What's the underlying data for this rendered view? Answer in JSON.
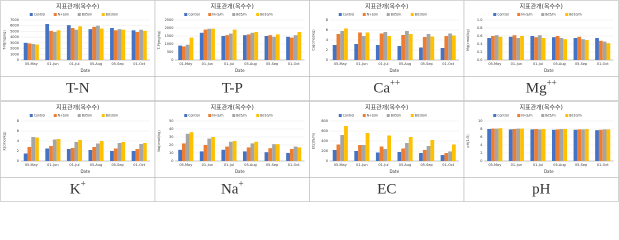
{
  "chart_data": [
    {
      "type": "bar",
      "title": "지표관개(옥수수)",
      "xlabel": "Date",
      "ylabel": "T-N(mg/kg)",
      "legend": "top",
      "categories": [
        "05-May",
        "01-Jun",
        "01-Jul",
        "05-Aug",
        "05-Sep",
        "01-Oct"
      ],
      "series": [
        {
          "name": "Control",
          "color": "#4472c4",
          "values": [
            3000,
            6300,
            6100,
            5400,
            5600,
            5200
          ]
        },
        {
          "name": "N+S/m",
          "color": "#ed7d31",
          "values": [
            2900,
            5100,
            5600,
            5800,
            5200,
            4900
          ]
        },
        {
          "name": "Bd5/m",
          "color": "#a5a5a5",
          "values": [
            2800,
            4900,
            5300,
            6000,
            5400,
            5300
          ]
        },
        {
          "name": "Bd10/m",
          "color": "#ffc000",
          "values": [
            2700,
            5200,
            5900,
            5500,
            5300,
            5100
          ]
        }
      ],
      "ylim": [
        0,
        7000
      ],
      "yticks": [
        0,
        1000,
        2000,
        3000,
        4000,
        5000,
        6000,
        7000
      ]
    },
    {
      "type": "bar",
      "title": "지표관개(옥수수)",
      "xlabel": "Date",
      "ylabel": "T-P(mg/kg)",
      "legend": "top",
      "categories": [
        "01-May",
        "01-Jun",
        "01-Jul",
        "05-Aug",
        "05-Sep",
        "01-Oct"
      ],
      "series": [
        {
          "name": "Control",
          "color": "#4472c4",
          "values": [
            900,
            1700,
            1500,
            1550,
            1500,
            1450
          ]
        },
        {
          "name": "N+S/m",
          "color": "#ed7d31",
          "values": [
            850,
            1900,
            1550,
            1600,
            1550,
            1400
          ]
        },
        {
          "name": "Bd5/m",
          "color": "#a5a5a5",
          "values": [
            950,
            1950,
            1650,
            1700,
            1450,
            1550
          ]
        },
        {
          "name": "Bd10/m",
          "color": "#ffc000",
          "values": [
            1400,
            1950,
            1900,
            1750,
            1600,
            1750
          ]
        }
      ],
      "ylim": [
        0,
        2500
      ],
      "yticks": [
        0,
        500,
        1000,
        1500,
        2000,
        2500
      ]
    },
    {
      "type": "bar",
      "title": "지표관개(옥수수)",
      "xlabel": "Date",
      "ylabel": "Ca(cmol/kg)",
      "legend": "top",
      "categories": [
        "05-May",
        "01-Jun",
        "01-Jul",
        "05-Aug",
        "05-Sep",
        "01-Oct"
      ],
      "series": [
        {
          "name": "Control",
          "color": "#4472c4",
          "values": [
            3.0,
            3.2,
            3.0,
            2.8,
            2.5,
            2.4
          ]
        },
        {
          "name": "N+S/m",
          "color": "#ed7d31",
          "values": [
            5.2,
            5.5,
            5.3,
            5.0,
            4.6,
            4.8
          ]
        },
        {
          "name": "Bd5/m",
          "color": "#a5a5a5",
          "values": [
            5.8,
            4.8,
            5.6,
            5.8,
            5.2,
            5.3
          ]
        },
        {
          "name": "Bd10/m",
          "color": "#ffc000",
          "values": [
            6.3,
            5.5,
            4.8,
            5.2,
            4.7,
            4.9
          ]
        }
      ],
      "ylim": [
        0,
        8
      ],
      "yticks": [
        0,
        2,
        4,
        6,
        8
      ]
    },
    {
      "type": "bar",
      "title": "지표관개(옥수수)",
      "xlabel": "Date",
      "ylabel": "Mg(cmol/kg)",
      "legend": "top",
      "categories": [
        "05-May",
        "01-Jun",
        "01-Jul",
        "05-Aug",
        "05-Sep",
        "01-Oct"
      ],
      "series": [
        {
          "name": "Control",
          "color": "#4472c4",
          "values": [
            0.55,
            0.58,
            0.6,
            0.57,
            0.55,
            0.55
          ]
        },
        {
          "name": "N+S/m",
          "color": "#ed7d31",
          "values": [
            0.6,
            0.62,
            0.57,
            0.6,
            0.58,
            0.48
          ]
        },
        {
          "name": "Bd5/m",
          "color": "#a5a5a5",
          "values": [
            0.62,
            0.55,
            0.62,
            0.55,
            0.52,
            0.46
          ]
        },
        {
          "name": "Bd10/m",
          "color": "#ffc000",
          "values": [
            0.58,
            0.6,
            0.55,
            0.52,
            0.5,
            0.42
          ]
        }
      ],
      "ylim": [
        0,
        1
      ],
      "yticks": [
        {
          "value": 0,
          "label": "0.0"
        },
        0.2,
        0.4,
        0.6,
        0.8,
        {
          "value": 1,
          "label": "1.0"
        }
      ]
    },
    {
      "type": "bar",
      "title": "지표관개(옥수수)",
      "xlabel": "Date",
      "ylabel": "K(cmol/kg)",
      "legend": "top",
      "categories": [
        "05-May",
        "01-Jun",
        "01-Jul",
        "05-Aug",
        "05-Sep",
        "01-Oct"
      ],
      "series": [
        {
          "name": "Control",
          "color": "#4472c4",
          "values": [
            1.5,
            2.5,
            2.4,
            2.2,
            2.0,
            2.0
          ]
        },
        {
          "name": "N+S/m",
          "color": "#ed7d31",
          "values": [
            2.8,
            3.0,
            2.6,
            2.8,
            2.5,
            2.4
          ]
        },
        {
          "name": "Bd5/m",
          "color": "#a5a5a5",
          "values": [
            4.8,
            4.3,
            3.8,
            3.5,
            3.6,
            3.4
          ]
        },
        {
          "name": "Bd10/m",
          "color": "#ffc000",
          "values": [
            4.7,
            4.4,
            4.2,
            4.0,
            3.8,
            3.6
          ]
        }
      ],
      "ylim": [
        0,
        8
      ],
      "yticks": [
        0,
        2,
        4,
        6,
        8
      ]
    },
    {
      "type": "bar",
      "title": "지표관개(옥수수)",
      "xlabel": "Date",
      "ylabel": "Na(cmol/kg)",
      "legend": "top",
      "categories": [
        "05-May",
        "01-Jun",
        "01-Jul",
        "05-Aug",
        "05-Sep",
        "01-Oct"
      ],
      "series": [
        {
          "name": "Control",
          "color": "#4472c4",
          "values": [
            14,
            12,
            14,
            12,
            11,
            10
          ]
        },
        {
          "name": "N+S/m",
          "color": "#ed7d31",
          "values": [
            22,
            20,
            18,
            17,
            16,
            15
          ]
        },
        {
          "name": "Bd5/m",
          "color": "#a5a5a5",
          "values": [
            34,
            28,
            24,
            22,
            21,
            18
          ]
        },
        {
          "name": "Bd10/m",
          "color": "#ffc000",
          "values": [
            36,
            30,
            25,
            24,
            21,
            17
          ]
        }
      ],
      "ylim": [
        0,
        50
      ],
      "yticks": [
        0,
        10,
        20,
        30,
        40,
        50
      ]
    },
    {
      "type": "bar",
      "title": "지표관개(옥수수)",
      "xlabel": "Date",
      "ylabel": "EC(dS/m)",
      "legend": "top",
      "categories": [
        "05-May",
        "01-Jun",
        "01-Jul",
        "05-Aug",
        "05-Sep",
        "01-Oct"
      ],
      "series": [
        {
          "name": "Control",
          "color": "#4472c4",
          "values": [
            220,
            200,
            170,
            180,
            160,
            120
          ]
        },
        {
          "name": "N+S/m",
          "color": "#ed7d31",
          "values": [
            330,
            320,
            290,
            250,
            220,
            160
          ]
        },
        {
          "name": "Bd5/m",
          "color": "#a5a5a5",
          "values": [
            520,
            320,
            240,
            360,
            300,
            190
          ]
        },
        {
          "name": "Bd10/m",
          "color": "#ffc000",
          "values": [
            700,
            560,
            510,
            480,
            420,
            330
          ]
        }
      ],
      "ylim": [
        0,
        800
      ],
      "yticks": [
        0,
        200,
        400,
        600,
        800
      ]
    },
    {
      "type": "bar",
      "title": "지표관개(옥수수)",
      "xlabel": "Date",
      "ylabel": "pH(1:5)",
      "legend": "top",
      "categories": [
        "05-May",
        "01-Jun",
        "01-Jul",
        "05-Aug",
        "05-Sep",
        "01-Oct"
      ],
      "series": [
        {
          "name": "Control",
          "color": "#4472c4",
          "values": [
            8.0,
            7.9,
            7.9,
            7.8,
            7.8,
            7.7
          ]
        },
        {
          "name": "N+S/m",
          "color": "#ed7d31",
          "values": [
            8.1,
            8.0,
            8.0,
            7.9,
            7.9,
            7.8
          ]
        },
        {
          "name": "Bd5/m",
          "color": "#a5a5a5",
          "values": [
            8.1,
            8.1,
            7.9,
            8.0,
            7.9,
            7.9
          ]
        },
        {
          "name": "Bd10/m",
          "color": "#ffc000",
          "values": [
            8.2,
            8.1,
            8.0,
            8.0,
            8.0,
            7.9
          ]
        }
      ],
      "ylim": [
        0,
        10
      ],
      "yticks": [
        0,
        2,
        4,
        6,
        8,
        10
      ]
    }
  ],
  "panels": [
    {
      "label": "T-N"
    },
    {
      "label": "T-P"
    },
    {
      "label": "Ca",
      "sup": "++"
    },
    {
      "label": "Mg",
      "sup": "++"
    },
    {
      "label": "K",
      "sup": "+"
    },
    {
      "label": "Na",
      "sup": "+"
    },
    {
      "label": "EC"
    },
    {
      "label": "pH"
    }
  ]
}
